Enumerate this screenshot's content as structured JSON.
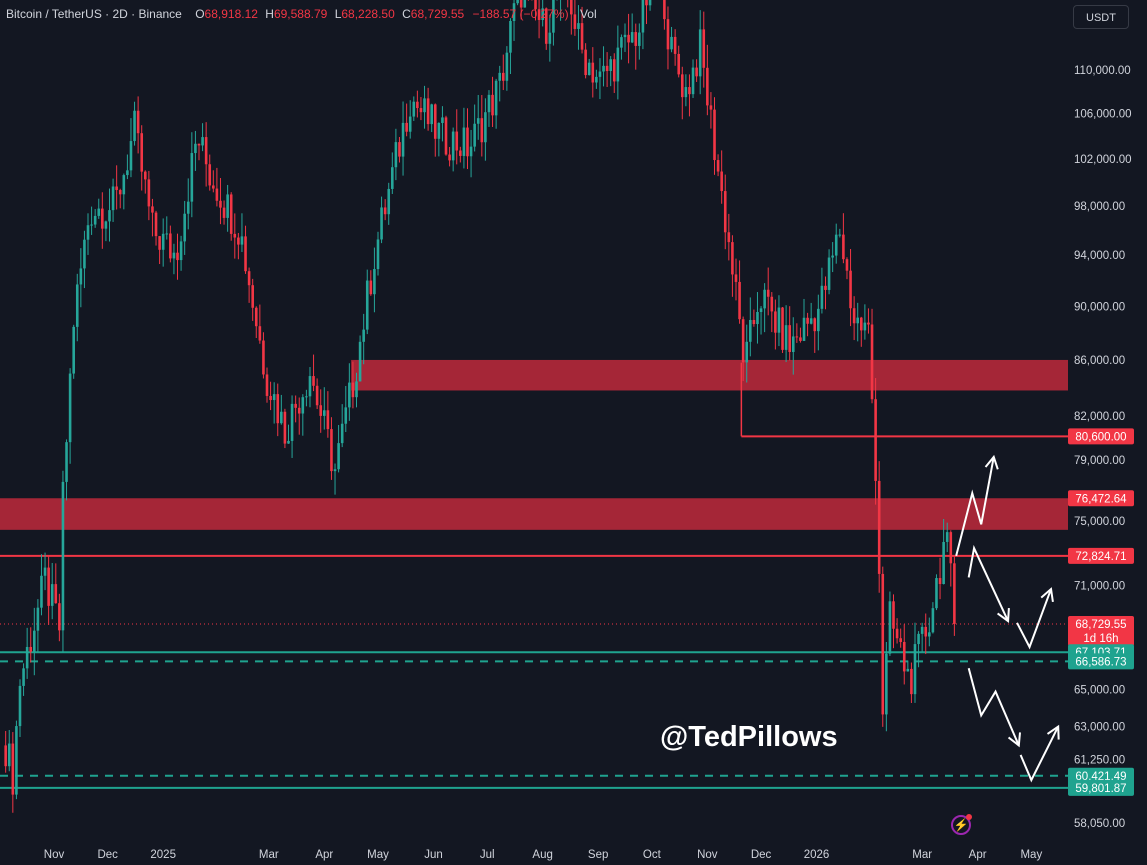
{
  "header": {
    "symbol": "Bitcoin / TetherUS · 2D · Binance",
    "open_label": "O",
    "open": "68,918.12",
    "high_label": "H",
    "high": "69,588.79",
    "low_label": "L",
    "low": "68,228.50",
    "close_label": "C",
    "close": "68,729.55",
    "change": "−188.57 (−0.27%)",
    "vol_label": "Vol"
  },
  "currency_button": "USDT",
  "watermark": "@TedPillows",
  "colors": {
    "background": "#131722",
    "up": "#26a69a",
    "down": "#f23645",
    "zone": "#b2283a",
    "support": "#1fa38f",
    "arrows": "#ffffff"
  },
  "chart_data": {
    "type": "candlestick",
    "interval": "2D",
    "y_scale": "log",
    "ylim": [
      57500,
      121000
    ],
    "grid": false,
    "y_ticks": [
      {
        "value": 110000,
        "label": "110,000.00"
      },
      {
        "value": 106000,
        "label": "106,000.00"
      },
      {
        "value": 102000,
        "label": "102,000.00"
      },
      {
        "value": 98000,
        "label": "98,000.00"
      },
      {
        "value": 94000,
        "label": "94,000.00"
      },
      {
        "value": 90000,
        "label": "90,000.00"
      },
      {
        "value": 86000,
        "label": "86,000.00"
      },
      {
        "value": 82000,
        "label": "82,000.00"
      },
      {
        "value": 79000,
        "label": "79,000.00"
      },
      {
        "value": 75000,
        "label": "75,000.00"
      },
      {
        "value": 71000,
        "label": "71,000.00"
      },
      {
        "value": 65000,
        "label": "65,000.00"
      },
      {
        "value": 63000,
        "label": "63,000.00"
      },
      {
        "value": 61250,
        "label": "61,250.00"
      },
      {
        "value": 58050,
        "label": "58,050.00"
      }
    ],
    "x_ticks": [
      {
        "date": "2024-11-01",
        "label": "Nov"
      },
      {
        "date": "2024-12-01",
        "label": "Dec"
      },
      {
        "date": "2025-01-01",
        "label": "2025"
      },
      {
        "date": "2025-03-01",
        "label": "Mar"
      },
      {
        "date": "2025-04-01",
        "label": "Apr"
      },
      {
        "date": "2025-05-01",
        "label": "May"
      },
      {
        "date": "2025-06-01",
        "label": "Jun"
      },
      {
        "date": "2025-07-01",
        "label": "Jul"
      },
      {
        "date": "2025-08-01",
        "label": "Aug"
      },
      {
        "date": "2025-09-01",
        "label": "Sep"
      },
      {
        "date": "2025-10-01",
        "label": "Oct"
      },
      {
        "date": "2025-11-01",
        "label": "Nov"
      },
      {
        "date": "2025-12-01",
        "label": "Dec"
      },
      {
        "date": "2026-01-01",
        "label": "2026"
      },
      {
        "date": "2026-03-01",
        "label": "Mar"
      },
      {
        "date": "2026-04-01",
        "label": "Apr"
      },
      {
        "date": "2026-05-01",
        "label": "May"
      }
    ],
    "price_path": [
      [
        "2024-10-05",
        62000
      ],
      [
        "2024-10-09",
        60400
      ],
      [
        "2024-10-13",
        65500
      ],
      [
        "2024-10-27",
        71300
      ],
      [
        "2024-11-04",
        68500
      ],
      [
        "2024-11-06",
        76400
      ],
      [
        "2024-11-12",
        89000
      ],
      [
        "2024-11-21",
        97700
      ],
      [
        "2024-12-05",
        98000
      ],
      [
        "2024-12-16",
        104500
      ],
      [
        "2024-12-26",
        96000
      ],
      [
        "2025-01-08",
        94000
      ],
      [
        "2025-01-20",
        104000
      ],
      [
        "2025-01-27",
        100700
      ],
      [
        "2025-02-13",
        96000
      ],
      [
        "2025-02-27",
        85200
      ],
      [
        "2025-03-10",
        81000
      ],
      [
        "2025-03-24",
        85200
      ],
      [
        "2025-04-07",
        78300
      ],
      [
        "2025-04-18",
        85000
      ],
      [
        "2025-04-29",
        94000
      ],
      [
        "2025-05-19",
        107500
      ],
      [
        "2025-06-05",
        104000
      ],
      [
        "2025-06-21",
        103000
      ],
      [
        "2025-07-08",
        108500
      ],
      [
        "2025-07-19",
        118000
      ],
      [
        "2025-08-02",
        114000
      ],
      [
        "2025-08-14",
        119000
      ],
      [
        "2025-08-22",
        112000
      ],
      [
        "2025-09-02",
        109000
      ],
      [
        "2025-09-24",
        114000
      ],
      [
        "2025-10-05",
        122000
      ],
      [
        "2025-10-11",
        112000
      ],
      [
        "2025-10-20",
        108000
      ],
      [
        "2025-10-28",
        112000
      ],
      [
        "2025-11-14",
        94000
      ],
      [
        "2025-11-22",
        85500
      ],
      [
        "2025-11-30",
        91000
      ],
      [
        "2025-12-17",
        87000
      ],
      [
        "2026-01-03",
        90000
      ],
      [
        "2026-01-14",
        96000
      ],
      [
        "2026-01-22",
        89000
      ],
      [
        "2026-01-30",
        88000
      ],
      [
        "2026-02-04",
        76500
      ],
      [
        "2026-02-07",
        64000
      ],
      [
        "2026-02-11",
        69000
      ],
      [
        "2026-02-22",
        65500
      ],
      [
        "2026-03-05",
        69000
      ],
      [
        "2026-03-14",
        74000
      ],
      [
        "2026-03-20",
        68729.55
      ]
    ],
    "zones": [
      {
        "from": "2025-04-16",
        "top": 86000,
        "bottom": 83800
      },
      {
        "from": "2024-10-01",
        "top": 76472.64,
        "bottom": 74450
      }
    ],
    "levels": [
      {
        "value": 80600,
        "label": "80,600.00",
        "color": "#f23645",
        "style": "solid",
        "from": "2025-11-20"
      },
      {
        "value": 76472.64,
        "label": "76,472.64",
        "color": "#f23645",
        "style": "none"
      },
      {
        "value": 72824.71,
        "label": "72,824.71",
        "color": "#f23645",
        "style": "solid"
      },
      {
        "value": 68729.55,
        "label": "68,729.55",
        "sublabel": "1d 16h",
        "color": "#f23645",
        "style": "dotted"
      },
      {
        "value": 67103.71,
        "label": "67,103.71",
        "color": "#1fa38f",
        "style": "solid"
      },
      {
        "value": 66586.73,
        "label": "66,586.73",
        "color": "#1fa38f",
        "style": "dashed"
      },
      {
        "value": 60421.49,
        "label": "60,421.49",
        "color": "#1fa38f",
        "style": "dashed"
      },
      {
        "value": 59801.87,
        "label": "59,801.87",
        "color": "#1fa38f",
        "style": "solid"
      }
    ],
    "projections": [
      {
        "scenario": "breakout",
        "path": [
          [
            "2026-03-20",
            72824
          ],
          [
            "2026-03-29",
            76800
          ],
          [
            "2026-04-03",
            74800
          ],
          [
            "2026-04-10",
            79200
          ]
        ]
      },
      {
        "scenario": "range",
        "path": [
          [
            "2026-03-27",
            71500
          ],
          [
            "2026-03-30",
            73300
          ],
          [
            "2026-04-18",
            68900
          ]
        ]
      },
      {
        "scenario": "range-rebound",
        "path": [
          [
            "2026-04-23",
            68800
          ],
          [
            "2026-04-30",
            67400
          ],
          [
            "2026-05-12",
            70800
          ]
        ]
      },
      {
        "scenario": "breakdown",
        "path": [
          [
            "2026-03-27",
            66200
          ],
          [
            "2026-04-03",
            63600
          ],
          [
            "2026-04-11",
            64900
          ],
          [
            "2026-04-24",
            62000
          ]
        ]
      },
      {
        "scenario": "breakdown-rebound",
        "path": [
          [
            "2026-04-25",
            61500
          ],
          [
            "2026-05-01",
            60200
          ],
          [
            "2026-05-16",
            63000
          ]
        ]
      }
    ]
  }
}
